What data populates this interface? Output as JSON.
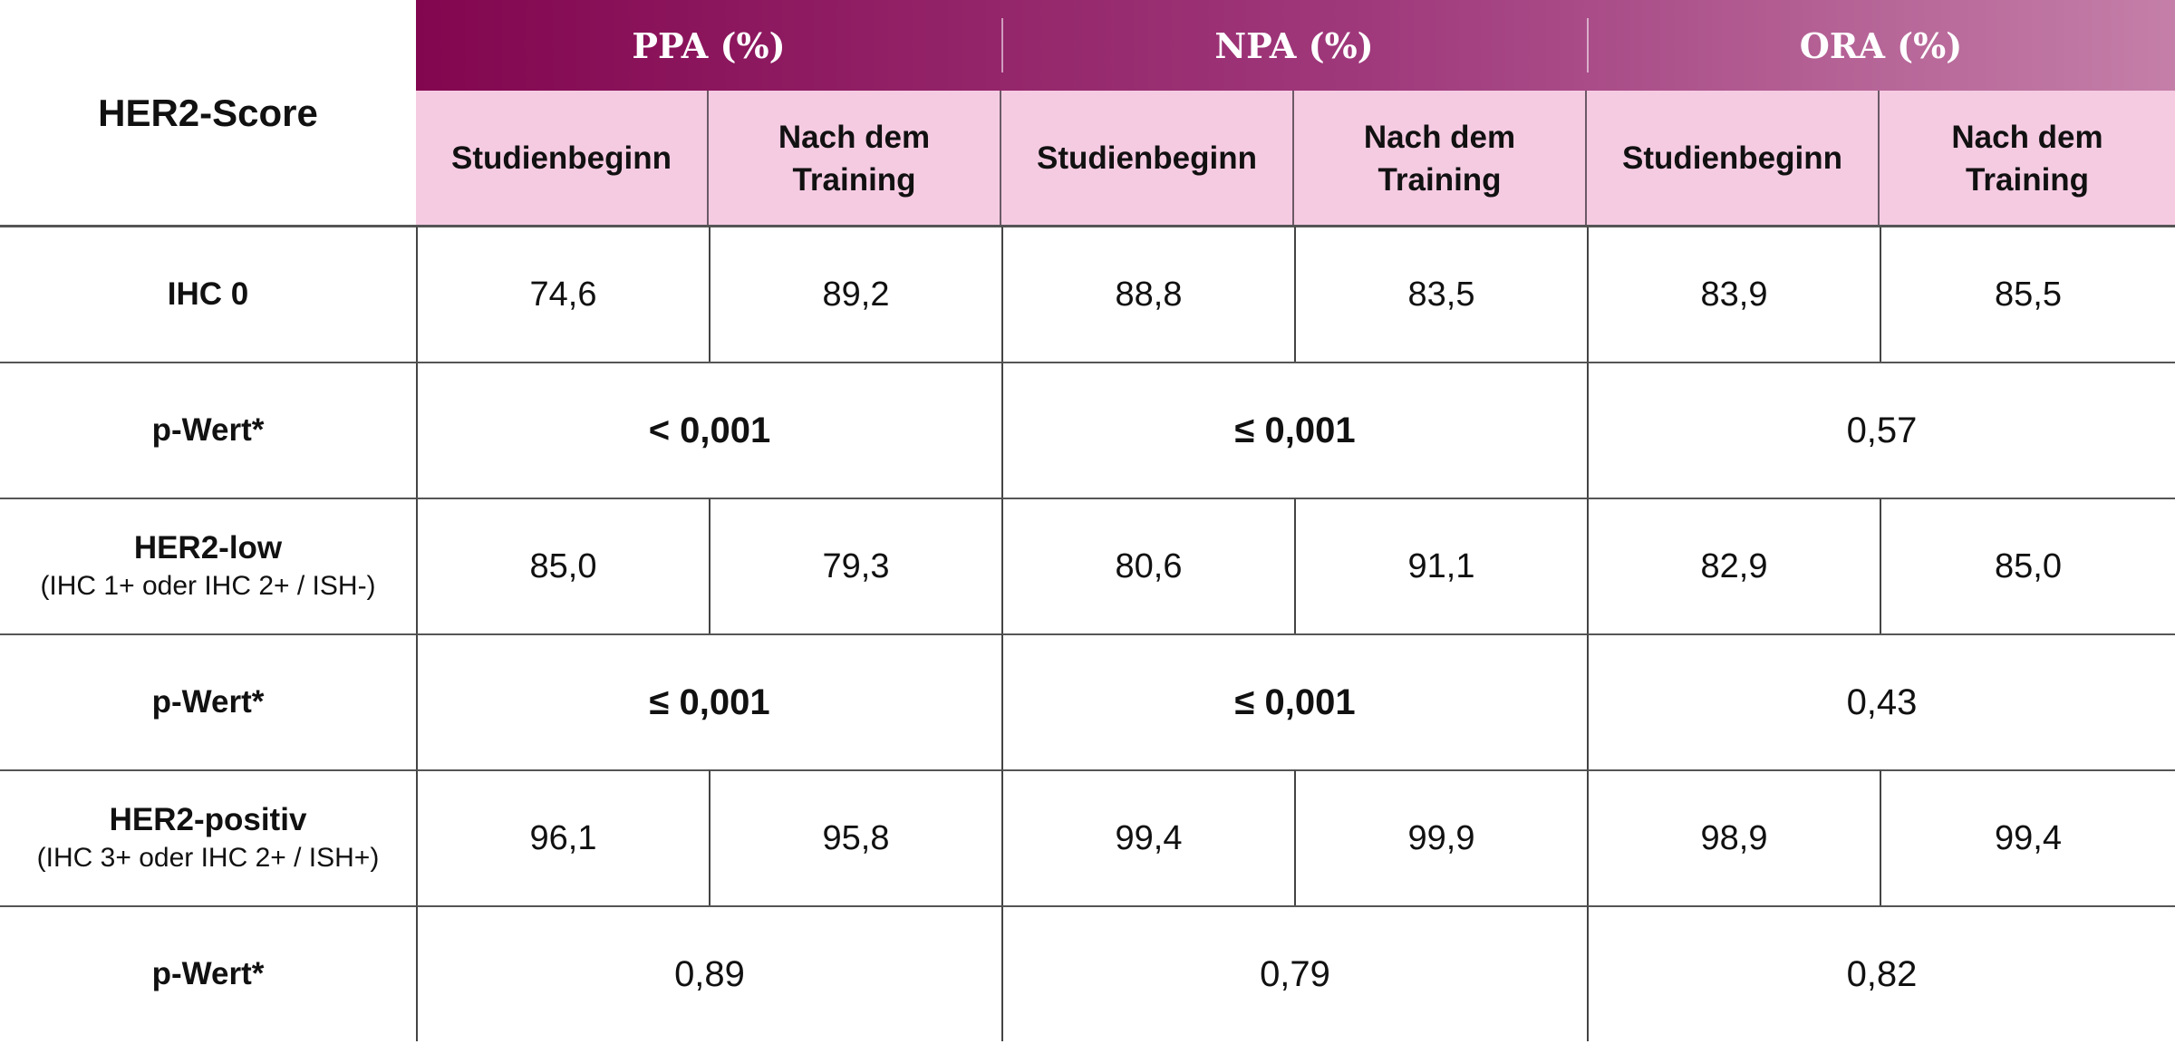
{
  "header": {
    "row_label": "HER2-Score",
    "groups": [
      "PPA (%)",
      "NPA (%)",
      "ORA (%)"
    ],
    "subcolumns": [
      "Studienbeginn",
      "Nach dem Training"
    ]
  },
  "rows": [
    {
      "type": "values",
      "label": "IHC 0",
      "sublabel": "",
      "values": [
        "74,6",
        "89,2",
        "88,8",
        "83,5",
        "83,9",
        "85,5"
      ]
    },
    {
      "type": "p",
      "label": "p-Wert*",
      "values": [
        "< 0,001",
        "≤ 0,001",
        "0,57"
      ],
      "bold": [
        true,
        true,
        false
      ]
    },
    {
      "type": "values",
      "label": "HER2-low",
      "sublabel": "(IHC 1+ oder IHC 2+ / ISH-)",
      "values": [
        "85,0",
        "79,3",
        "80,6",
        "91,1",
        "82,9",
        "85,0"
      ]
    },
    {
      "type": "p",
      "label": "p-Wert*",
      "values": [
        "≤ 0,001",
        "≤ 0,001",
        "0,43"
      ],
      "bold": [
        true,
        true,
        false
      ]
    },
    {
      "type": "values",
      "label": "HER2-positiv",
      "sublabel": "(IHC 3+ oder IHC 2+ / ISH+)",
      "values": [
        "96,1",
        "95,8",
        "99,4",
        "99,9",
        "98,9",
        "99,4"
      ]
    },
    {
      "type": "p",
      "label": "p-Wert*",
      "values": [
        "0,89",
        "0,79",
        "0,82"
      ],
      "bold": [
        false,
        false,
        false
      ]
    }
  ],
  "colors": {
    "header_gradient_start": "#82064f",
    "header_gradient_end": "#c47fa8",
    "subheader_bg": "#f5cbe2"
  }
}
